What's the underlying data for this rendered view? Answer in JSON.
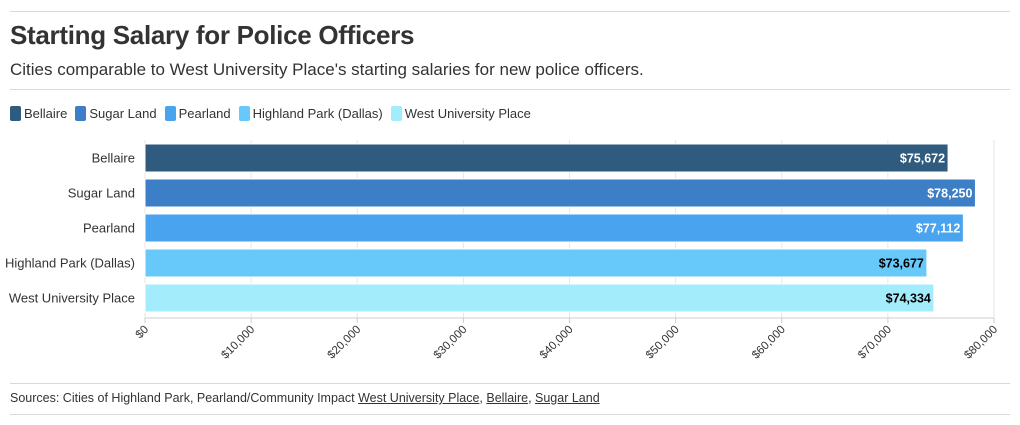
{
  "header": {
    "title": "Starting Salary for Police Officers",
    "subtitle": "Cities comparable to West University Place's starting salaries for new police officers."
  },
  "legend": [
    {
      "label": "Bellaire",
      "color": "#2f5b7f"
    },
    {
      "label": "Sugar Land",
      "color": "#3d7fc7"
    },
    {
      "label": "Pearland",
      "color": "#49a3ef"
    },
    {
      "label": "Highland Park (Dallas)",
      "color": "#66c9f9"
    },
    {
      "label": "West University Place",
      "color": "#a3ecfb"
    }
  ],
  "source": {
    "prefix": "Sources: Cities of Highland Park, Pearland/Community Impact ",
    "links": [
      {
        "label": "West University Place",
        "sep": ", "
      },
      {
        "label": "Bellaire",
        "sep": ", "
      },
      {
        "label": "Sugar Land",
        "sep": ""
      }
    ]
  },
  "chart_data": {
    "type": "bar",
    "orientation": "horizontal",
    "title": "Starting Salary for Police Officers",
    "subtitle": "Cities comparable to West University Place's starting salaries for new police officers.",
    "categories": [
      "Bellaire",
      "Sugar Land",
      "Pearland",
      "Highland Park (Dallas)",
      "West University Place"
    ],
    "values": [
      75672,
      78250,
      77112,
      73677,
      74334
    ],
    "value_labels": [
      "$75,672",
      "$78,250",
      "$77,112",
      "$73,677",
      "$74,334"
    ],
    "colors": [
      "#2f5b7f",
      "#3d7fc7",
      "#49a3ef",
      "#66c9f9",
      "#a3ecfb"
    ],
    "label_colors": [
      "#ffffff",
      "#ffffff",
      "#ffffff",
      "#000000",
      "#000000"
    ],
    "xlim": [
      0,
      80000
    ],
    "x_ticks": [
      0,
      10000,
      20000,
      30000,
      40000,
      50000,
      60000,
      70000,
      80000
    ],
    "x_tick_labels": [
      "$0",
      "$10,000",
      "$20,000",
      "$30,000",
      "$40,000",
      "$50,000",
      "$60,000",
      "$70,000",
      "$80,000"
    ],
    "grid": "vertical",
    "legend_position": "top-left"
  }
}
